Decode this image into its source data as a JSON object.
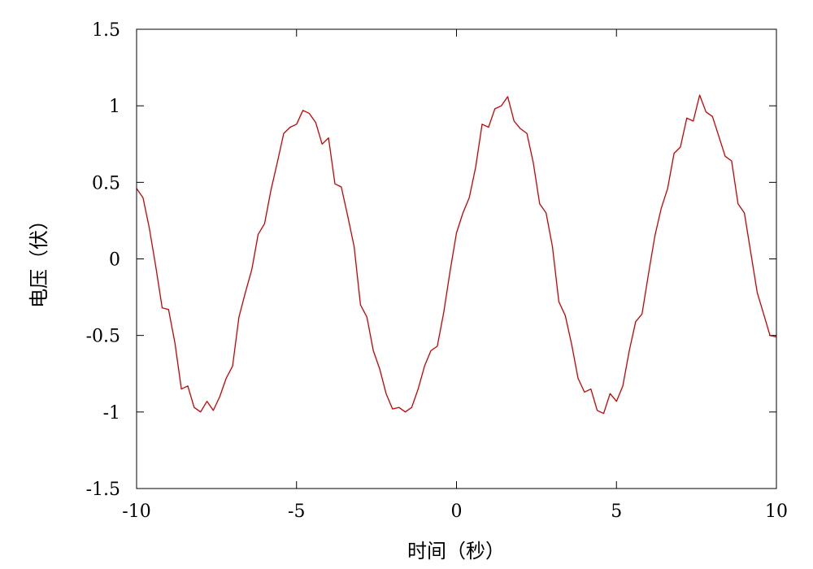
{
  "chart_data": {
    "type": "line",
    "title": "",
    "xlabel": "时间（秒）",
    "ylabel": "电压（伏）",
    "xlim": [
      -10,
      10
    ],
    "ylim": [
      -1.5,
      1.5
    ],
    "xticks": [
      -10,
      -5,
      0,
      5,
      10
    ],
    "xtick_labels": [
      "-10",
      "-5",
      "0",
      "5",
      "10"
    ],
    "yticks": [
      -1.5,
      -1,
      -0.5,
      0,
      0.5,
      1,
      1.5
    ],
    "ytick_labels": [
      "-1.5",
      "-1",
      "-0.5",
      "0",
      "0.5",
      "1",
      "1.5"
    ],
    "grid": false,
    "series": [
      {
        "color": "#cc0000",
        "x": [
          -10.0,
          -9.8,
          -9.6,
          -9.4,
          -9.2,
          -9.0,
          -8.8,
          -8.6,
          -8.4,
          -8.2,
          -8.0,
          -7.8,
          -7.6,
          -7.4,
          -7.2,
          -7.0,
          -6.8,
          -6.6,
          -6.4,
          -6.2,
          -6.0,
          -5.8,
          -5.6,
          -5.4,
          -5.2,
          -5.0,
          -4.8,
          -4.6,
          -4.4,
          -4.2,
          -4.0,
          -3.8,
          -3.6,
          -3.4,
          -3.2,
          -3.0,
          -2.8,
          -2.6,
          -2.4,
          -2.2,
          -2.0,
          -1.8,
          -1.6,
          -1.4,
          -1.2,
          -1.0,
          -0.8,
          -0.6,
          -0.4,
          -0.2,
          0.0,
          0.2,
          0.4,
          0.6,
          0.8,
          1.0,
          1.2,
          1.4,
          1.6,
          1.8,
          2.0,
          2.2,
          2.4,
          2.6,
          2.8,
          3.0,
          3.2,
          3.4,
          3.6,
          3.8,
          4.0,
          4.2,
          4.4,
          4.6,
          4.8,
          5.0,
          5.2,
          5.4,
          5.6,
          5.8,
          6.0,
          6.2,
          6.4,
          6.6,
          6.8,
          7.0,
          7.2,
          7.4,
          7.6,
          7.8,
          8.0,
          8.2,
          8.4,
          8.6,
          8.8,
          9.0,
          9.2,
          9.4,
          9.6,
          9.8,
          10.0
        ],
        "y": [
          0.46,
          0.4,
          0.2,
          -0.05,
          -0.32,
          -0.33,
          -0.55,
          -0.85,
          -0.83,
          -0.97,
          -1.0,
          -0.93,
          -0.99,
          -0.9,
          -0.78,
          -0.7,
          -0.38,
          -0.22,
          -0.07,
          0.16,
          0.23,
          0.45,
          0.63,
          0.82,
          0.86,
          0.88,
          0.97,
          0.95,
          0.89,
          0.75,
          0.79,
          0.49,
          0.47,
          0.28,
          0.08,
          -0.3,
          -0.38,
          -0.6,
          -0.72,
          -0.88,
          -0.98,
          -0.97,
          -1.0,
          -0.97,
          -0.85,
          -0.7,
          -0.6,
          -0.57,
          -0.35,
          -0.08,
          0.17,
          0.3,
          0.4,
          0.6,
          0.88,
          0.86,
          0.98,
          1.0,
          1.06,
          0.9,
          0.85,
          0.82,
          0.63,
          0.36,
          0.3,
          0.08,
          -0.28,
          -0.37,
          -0.56,
          -0.78,
          -0.87,
          -0.85,
          -0.99,
          -1.01,
          -0.88,
          -0.93,
          -0.83,
          -0.6,
          -0.41,
          -0.36,
          -0.1,
          0.15,
          0.33,
          0.46,
          0.69,
          0.73,
          0.92,
          0.9,
          1.07,
          0.96,
          0.93,
          0.8,
          0.67,
          0.64,
          0.36,
          0.3,
          0.04,
          -0.22,
          -0.36,
          -0.5,
          -0.51
        ]
      }
    ]
  }
}
